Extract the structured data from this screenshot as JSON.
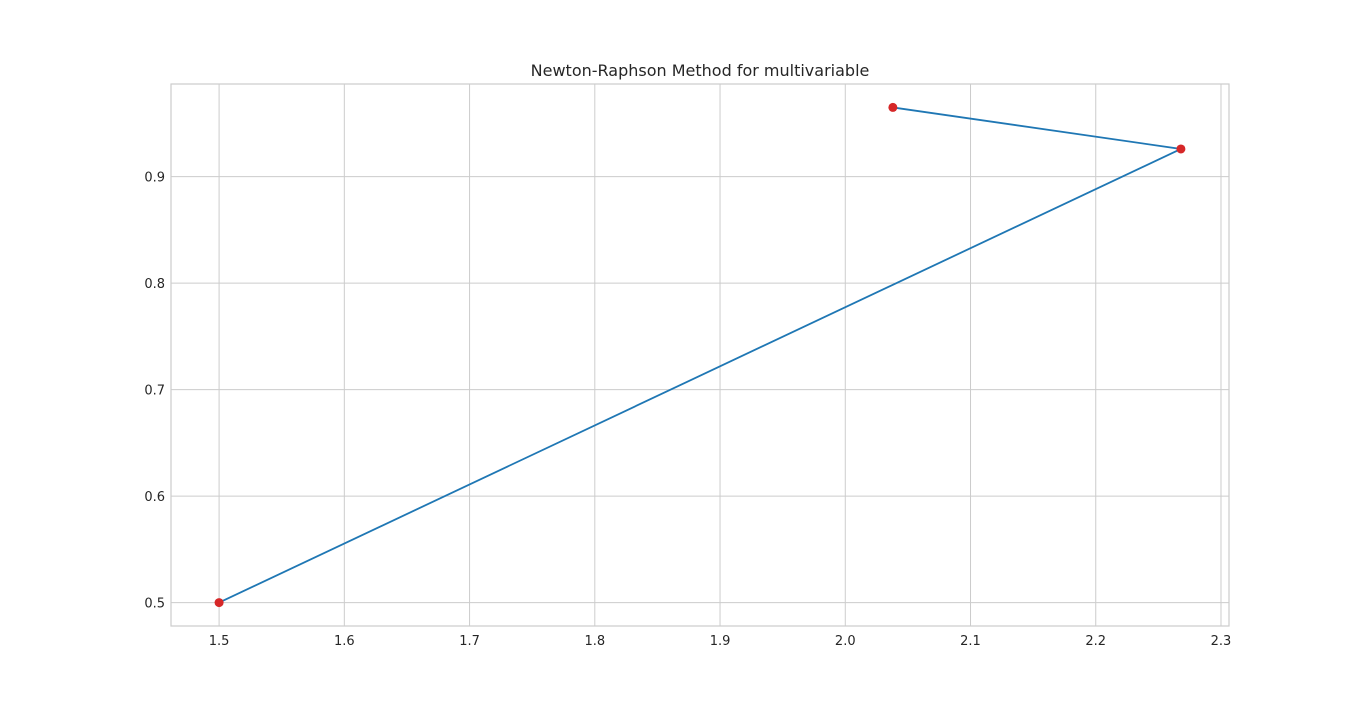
{
  "chart_data": {
    "type": "line",
    "title": "Newton-Raphson Method for multivariable",
    "xlabel": "",
    "ylabel": "",
    "xlim": [
      1.4616,
      2.3064
    ],
    "ylim": [
      0.478,
      0.987
    ],
    "xticks": [
      "1.5",
      "1.6",
      "1.7",
      "1.8",
      "1.9",
      "2.0",
      "2.1",
      "2.2",
      "2.3"
    ],
    "yticks": [
      "0.5",
      "0.6",
      "0.7",
      "0.8",
      "0.9"
    ],
    "grid": true,
    "series": [
      {
        "x": [
          1.5,
          2.268,
          2.038
        ],
        "y": [
          0.5,
          0.926,
          0.965
        ],
        "line_color": "#1f77b4",
        "marker_color": "#d62728"
      }
    ]
  },
  "colors": {
    "background": "#ffffff",
    "grid": "#cccccc",
    "text": "#262626"
  }
}
